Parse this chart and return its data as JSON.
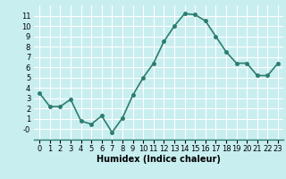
{
  "x": [
    0,
    1,
    2,
    3,
    4,
    5,
    6,
    7,
    8,
    9,
    10,
    11,
    12,
    13,
    14,
    15,
    16,
    17,
    18,
    19,
    20,
    21,
    22,
    23
  ],
  "y": [
    3.5,
    2.2,
    2.2,
    2.9,
    0.8,
    0.5,
    1.3,
    -0.3,
    1.1,
    3.3,
    5.0,
    6.4,
    8.5,
    10.0,
    11.2,
    11.1,
    10.5,
    9.0,
    7.5,
    6.4,
    6.4,
    5.2,
    5.2,
    6.4
  ],
  "line_color": "#2d7d6f",
  "marker_color": "#2d7d6f",
  "bg_color": "#c8eef0",
  "grid_color": "#b0d8da",
  "xlabel": "Humidex (Indice chaleur)",
  "xlim": [
    -0.5,
    23.5
  ],
  "ylim": [
    -1.0,
    12.0
  ],
  "xticks": [
    0,
    1,
    2,
    3,
    4,
    5,
    6,
    7,
    8,
    9,
    10,
    11,
    12,
    13,
    14,
    15,
    16,
    17,
    18,
    19,
    20,
    21,
    22,
    23
  ],
  "yticks": [
    0,
    1,
    2,
    3,
    4,
    5,
    6,
    7,
    8,
    9,
    10,
    11
  ],
  "ytick_labels": [
    "-0",
    "1",
    "2",
    "3",
    "4",
    "5",
    "6",
    "7",
    "8",
    "9",
    "10",
    "11"
  ],
  "xlabel_fontsize": 7,
  "tick_fontsize": 6,
  "line_width": 1.2,
  "marker_size": 2.5
}
